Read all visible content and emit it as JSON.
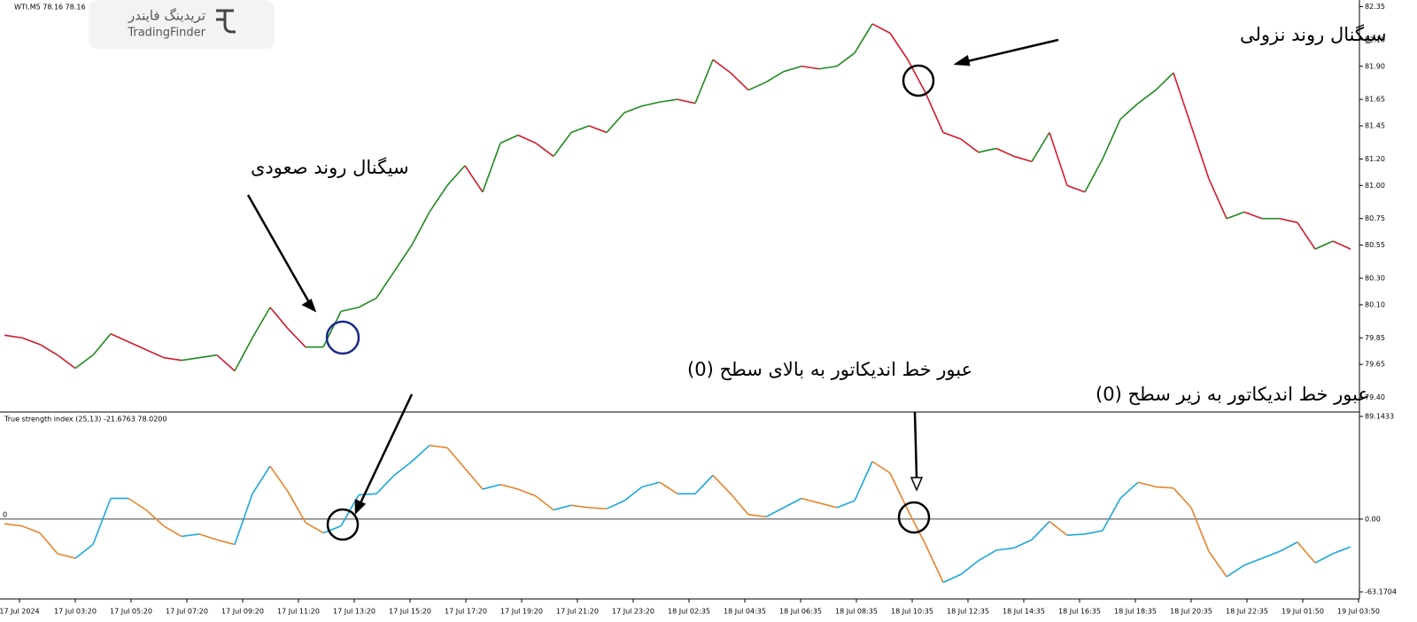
{
  "chart_data": [
    {
      "type": "line",
      "title": "WTI,M5  78.16 78.16",
      "up_color": "#1f8a1f",
      "down_color": "#d11a2a",
      "ylim": [
        79.29,
        82.4
      ],
      "yticks": [
        82.35,
        {
          "value": 82.1,
          "label": "82.10"
        },
        {
          "value": 81.9,
          "label": "81.90"
        },
        81.65,
        81.45,
        {
          "value": 81.2,
          "label": "81.20"
        },
        {
          "value": 81,
          "label": "81.00"
        },
        80.75,
        80.55,
        {
          "value": 80.3,
          "label": "80.30"
        },
        {
          "value": 80.1,
          "label": "80.10"
        },
        79.85,
        79.65,
        {
          "value": 79.4,
          "label": "79.40"
        }
      ],
      "values": [
        79.87,
        79.85,
        79.8,
        79.72,
        79.62,
        79.72,
        79.88,
        79.82,
        79.76,
        79.7,
        79.68,
        79.7,
        79.72,
        79.6,
        79.85,
        80.08,
        79.92,
        79.78,
        79.78,
        80.05,
        80.08,
        80.15,
        80.35,
        80.55,
        80.8,
        81.0,
        81.15,
        80.95,
        81.32,
        81.38,
        81.32,
        81.22,
        81.4,
        81.45,
        81.4,
        81.55,
        81.6,
        81.63,
        81.65,
        81.62,
        81.95,
        81.85,
        81.72,
        81.78,
        81.86,
        81.9,
        81.88,
        81.9,
        82.0,
        82.22,
        82.15,
        81.95,
        81.7,
        81.4,
        81.35,
        81.25,
        81.28,
        81.22,
        81.18,
        81.4,
        81.0,
        80.95,
        81.2,
        81.5,
        81.62,
        81.72,
        81.85,
        81.45,
        81.05,
        80.75,
        80.8,
        80.75,
        80.75,
        80.72,
        80.52,
        80.58,
        80.52
      ]
    },
    {
      "type": "line",
      "title": "True strength index (25,13) -21.6763 78.0200",
      "up_color": "#1aa7e0",
      "down_color": "#e8832a",
      "ylim": [
        -68.55,
        92.99
      ],
      "yticks": [
        89.1433,
        {
          "value": 0,
          "label": "0.00"
        },
        -63.1704
      ],
      "levels": [
        {
          "value": 0,
          "label": "0"
        }
      ],
      "values": [
        -4,
        -6,
        -12,
        -30,
        -34,
        -22,
        18,
        18,
        8,
        -6,
        -15,
        -13,
        -18,
        -22,
        22,
        46,
        24,
        -3,
        -12,
        -6,
        21,
        22,
        38,
        50,
        64,
        62,
        44,
        26,
        30,
        26,
        20,
        8,
        12,
        10,
        9,
        16,
        28,
        32,
        22,
        22,
        38,
        22,
        4,
        2,
        10,
        18,
        14,
        10,
        16,
        50,
        40,
        8,
        -22,
        -55,
        -48,
        -36,
        -27,
        -25,
        -18,
        -2,
        -14,
        -13,
        -10,
        18,
        32,
        28,
        27,
        10,
        -28,
        -50,
        -40,
        -34,
        -28,
        -20,
        -38,
        -30,
        -24
      ]
    }
  ],
  "time_axis": {
    "labels": [
      "17 Jul 2024",
      "17 Jul 03:20",
      "17 Jul 05:20",
      "17 Jul 07:20",
      "17 Jul 09:20",
      "17 Jul 11:20",
      "17 Jul 13:20",
      "17 Jul 15:20",
      "17 Jul 17:20",
      "17 Jul 19:20",
      "17 Jul 21:20",
      "17 Jul 23:20",
      "18 Jul 02:35",
      "18 Jul 04:35",
      "18 Jul 06:35",
      "18 Jul 08:35",
      "18 Jul 10:35",
      "18 Jul 12:35",
      "18 Jul 14:35",
      "18 Jul 16:35",
      "18 Jul 18:35",
      "18 Jul 20:35",
      "18 Jul 22:35",
      "19 Jul 01:50",
      "19 Jul 03:50"
    ]
  },
  "logo": {
    "persian": "تریدینگ فایندر",
    "english": "TradingFinder"
  },
  "annotations": {
    "downtrend": "سیگنال روند نزولی",
    "uptrend": "سیگنال روند صعودی",
    "cross_above": "عبور خط اندیکاتور به بالای سطح (0)",
    "cross_below": "عبور خط اندیکاتور به زیر سطح (0)"
  }
}
